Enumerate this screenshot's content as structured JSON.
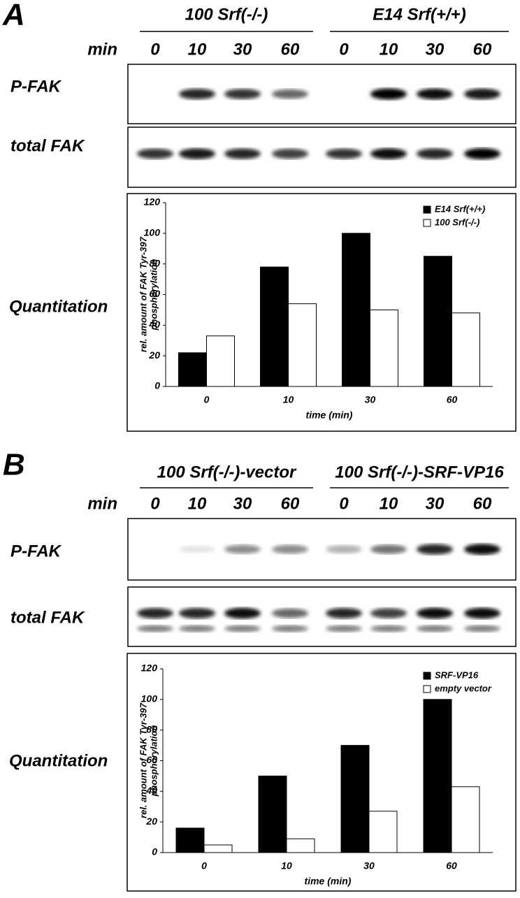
{
  "panels": [
    {
      "label": "A",
      "groups": [
        "100 Srf(-/-)",
        "E14 Srf(+/+)"
      ],
      "min_label": "min",
      "times": [
        "0",
        "10",
        "30",
        "60",
        "0",
        "10",
        "30",
        "60"
      ],
      "rows": [
        "P-FAK",
        "total FAK"
      ],
      "quant_label": "Quantitation"
    },
    {
      "label": "B",
      "groups": [
        "100 Srf(-/-)-vector",
        "100 Srf(-/-)-SRF-VP16"
      ],
      "min_label": "min",
      "times": [
        "0",
        "10",
        "30",
        "60",
        "0",
        "10",
        "30",
        "60"
      ],
      "rows": [
        "P-FAK",
        "total FAK"
      ],
      "quant_label": "Quantitation"
    }
  ],
  "chart_data": [
    {
      "type": "bar",
      "ylabel": [
        "rel. amount of FAK Tyr-397",
        "phosphorylation"
      ],
      "xlabel": "time (min)",
      "categories": [
        "0",
        "10",
        "30",
        "60"
      ],
      "series": [
        {
          "name": "E14 Srf(+/+)",
          "color": "#000000",
          "values": [
            22,
            78,
            100,
            85
          ]
        },
        {
          "name": "100 Srf(-/-)",
          "color": "#ffffff",
          "values": [
            33,
            54,
            50,
            48
          ]
        }
      ],
      "ylim": [
        0,
        120
      ],
      "yticks": [
        0,
        20,
        40,
        60,
        80,
        100,
        120
      ],
      "legend": "upper right"
    },
    {
      "type": "bar",
      "ylabel": [
        "rel. amount of FAK Tyr-397",
        "phosphorylation"
      ],
      "xlabel": "time (min)",
      "categories": [
        "0",
        "10",
        "30",
        "60"
      ],
      "series": [
        {
          "name": "SRF-VP16",
          "color": "#000000",
          "values": [
            16,
            50,
            70,
            100
          ]
        },
        {
          "name": "empty vector",
          "color": "#ffffff",
          "values": [
            5,
            9,
            27,
            43
          ]
        }
      ],
      "ylim": [
        0,
        120
      ],
      "yticks": [
        0,
        20,
        40,
        60,
        80,
        100,
        120
      ],
      "legend": "upper right"
    }
  ]
}
